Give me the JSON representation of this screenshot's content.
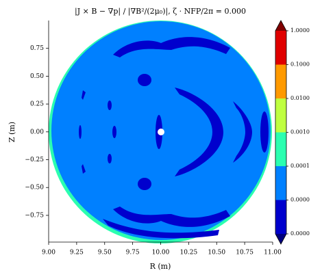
{
  "chart_data": {
    "type": "contour",
    "title": "|J × B − ∇p| / |∇B²/(2μ₀)|, ζ · NFP/2π = 0.000",
    "x_label": "R (m)",
    "y_label": "Z (m)",
    "xlim": [
      9.0,
      11.0
    ],
    "ylim": [
      -0.99,
      1.0
    ],
    "xticks": [
      {
        "value": 9.0,
        "label": "9.00"
      },
      {
        "value": 9.25,
        "label": "9.25"
      },
      {
        "value": 9.5,
        "label": "9.50"
      },
      {
        "value": 9.75,
        "label": "9.75"
      },
      {
        "value": 10.0,
        "label": "10.00"
      },
      {
        "value": 10.25,
        "label": "10.25"
      },
      {
        "value": 10.5,
        "label": "10.50"
      },
      {
        "value": 10.75,
        "label": "10.75"
      },
      {
        "value": 11.0,
        "label": "11.00"
      }
    ],
    "yticks": [
      {
        "value": -0.75,
        "label": "−0.75"
      },
      {
        "value": -0.5,
        "label": "−0.50"
      },
      {
        "value": -0.25,
        "label": "−0.25"
      },
      {
        "value": 0.0,
        "label": "0.00"
      },
      {
        "value": 0.25,
        "label": "0.25"
      },
      {
        "value": 0.5,
        "label": "0.50"
      },
      {
        "value": 0.75,
        "label": "0.75"
      }
    ],
    "levels": [
      {
        "value": 1e-06,
        "label": "0.0000"
      },
      {
        "value": 1e-05,
        "label": "0.0000"
      },
      {
        "value": 0.0001,
        "label": "0.0001"
      },
      {
        "value": 0.001,
        "label": "0.0010"
      },
      {
        "value": 0.01,
        "label": "0.0100"
      },
      {
        "value": 0.1,
        "label": "0.1000"
      },
      {
        "value": 1,
        "label": "1.0000"
      }
    ],
    "colorbar_scale": "log",
    "colors": [
      "#0000cd",
      "#0080ff",
      "#2bffb0",
      "#bfff40",
      "#ff9a00",
      "#e00000"
    ],
    "under_color": "#00007f",
    "over_color": "#800000"
  }
}
